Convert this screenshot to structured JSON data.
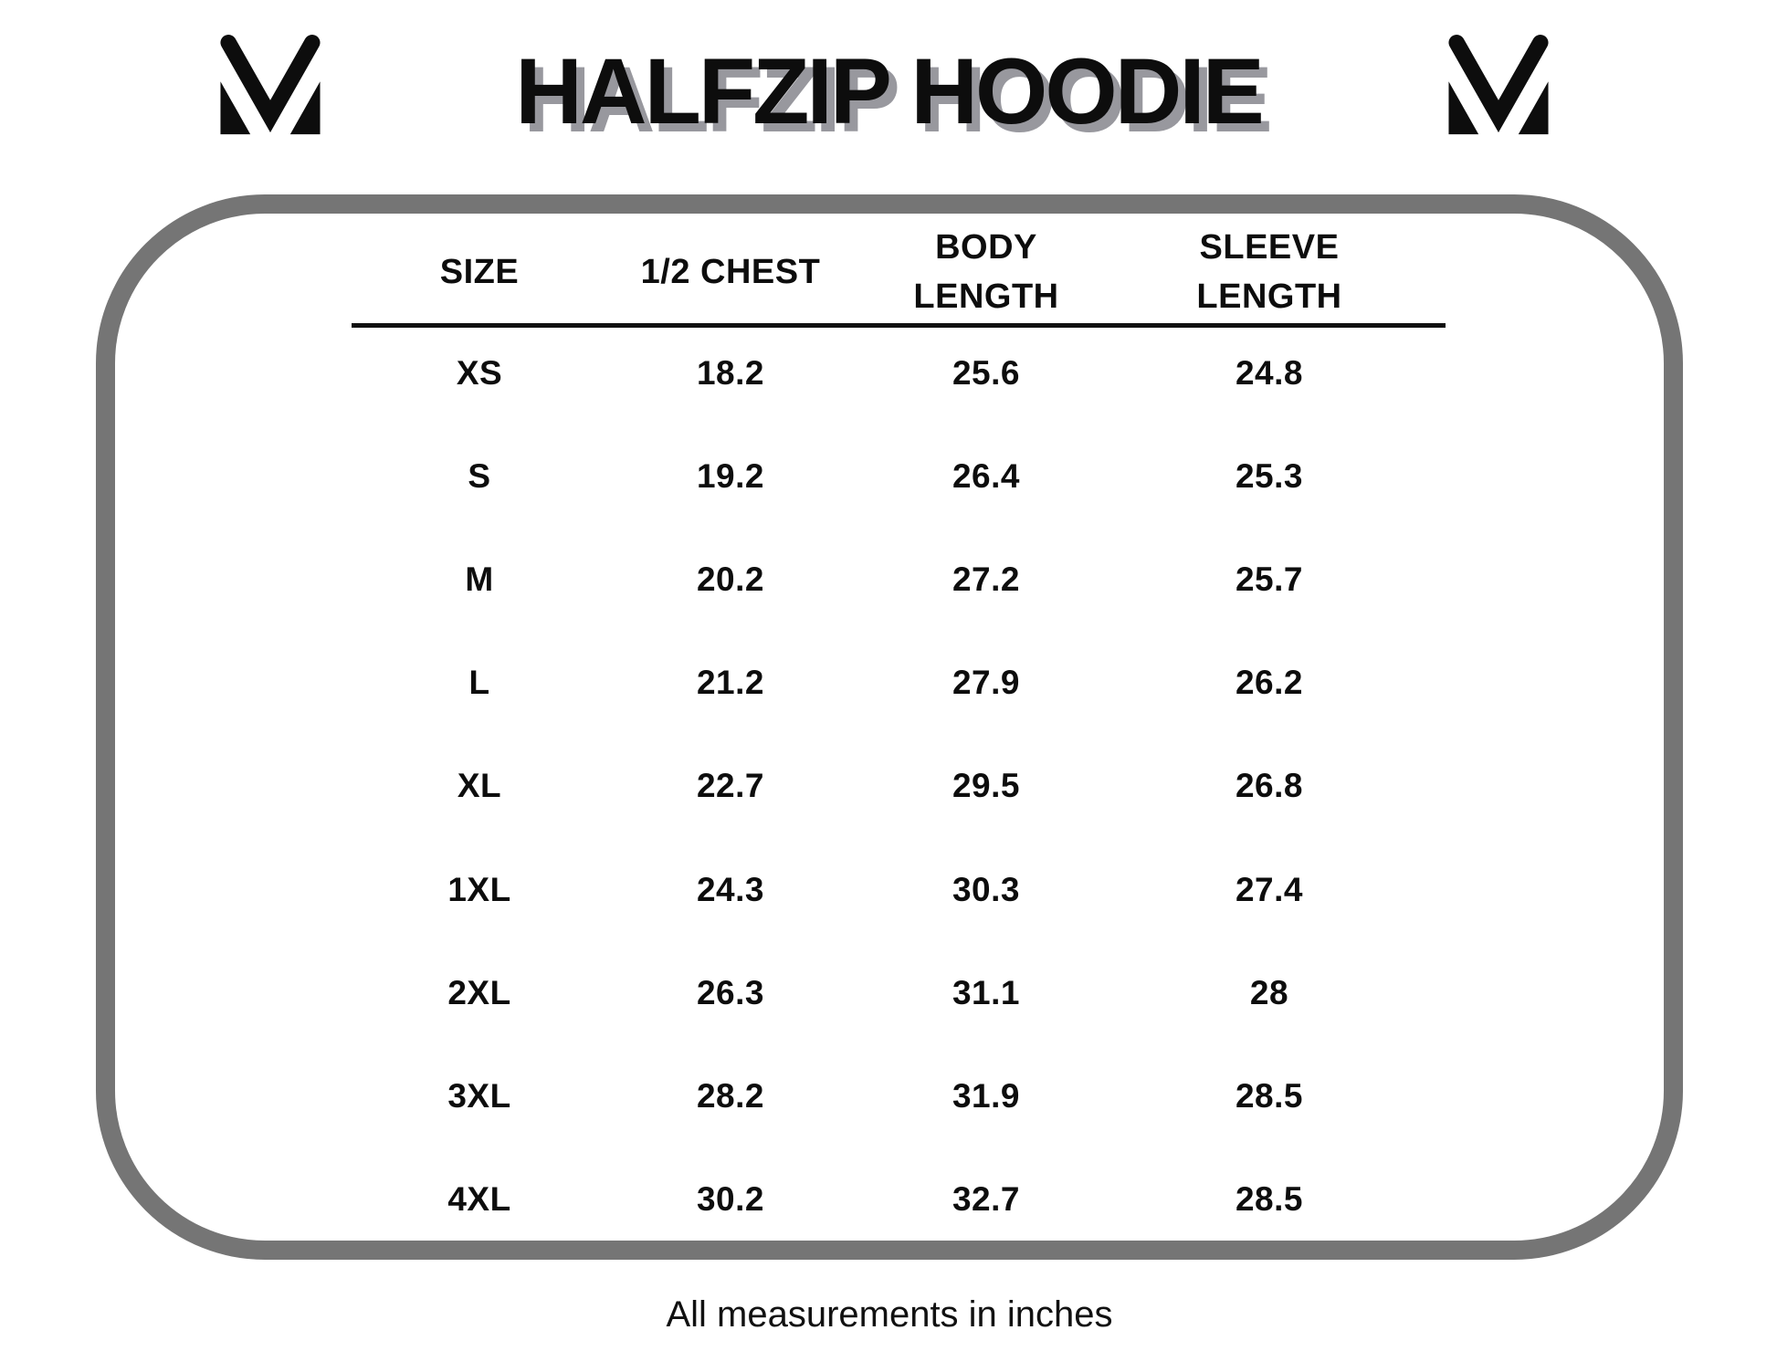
{
  "title": "HALFZIP HOODIE",
  "logos": {
    "left": "brand-m-logo",
    "right": "brand-m-logo"
  },
  "table": {
    "headers": [
      "SIZE",
      "1/2 CHEST",
      "BODY\nLENGTH",
      "SLEEVE\nLENGTH"
    ],
    "rows": [
      {
        "size": "XS",
        "half_chest": "18.2",
        "body_length": "25.6",
        "sleeve_length": "24.8"
      },
      {
        "size": "S",
        "half_chest": "19.2",
        "body_length": "26.4",
        "sleeve_length": "25.3"
      },
      {
        "size": "M",
        "half_chest": "20.2",
        "body_length": "27.2",
        "sleeve_length": "25.7"
      },
      {
        "size": "L",
        "half_chest": "21.2",
        "body_length": "27.9",
        "sleeve_length": "26.2"
      },
      {
        "size": "XL",
        "half_chest": "22.7",
        "body_length": "29.5",
        "sleeve_length": "26.8"
      },
      {
        "size": "1XL",
        "half_chest": "24.3",
        "body_length": "30.3",
        "sleeve_length": "27.4"
      },
      {
        "size": "2XL",
        "half_chest": "26.3",
        "body_length": "31.1",
        "sleeve_length": "28"
      },
      {
        "size": "3XL",
        "half_chest": "28.2",
        "body_length": "31.9",
        "sleeve_length": "28.5"
      },
      {
        "size": "4XL",
        "half_chest": "30.2",
        "body_length": "32.7",
        "sleeve_length": "28.5"
      }
    ]
  },
  "footer": "All measurements in inches",
  "colors": {
    "ink": "#0d0d0d",
    "title_shadow": "#98989e",
    "frame_border": "#757575",
    "background": "#ffffff"
  }
}
